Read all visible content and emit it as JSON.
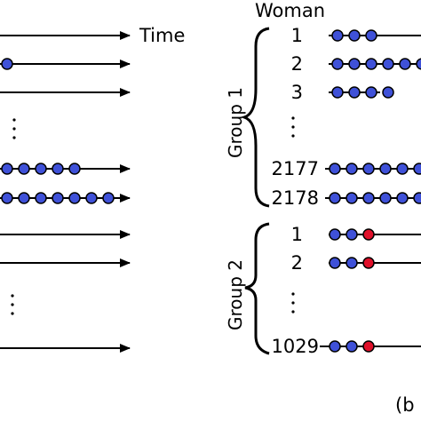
{
  "colors": {
    "blue": "#3f51d8",
    "red": "#e0102a",
    "line": "#000000"
  },
  "labels": {
    "time": "Time",
    "woman": "Woman",
    "group1": "Group 1",
    "group2": "Group 2",
    "panel": "(b"
  },
  "left_panel": {
    "rows": [
      {
        "id": "L1",
        "dots": []
      },
      {
        "id": "L2",
        "dots": [
          "blue"
        ]
      },
      {
        "id": "L3",
        "dots": []
      },
      {
        "id": "L4",
        "dots": [
          "blue",
          "blue",
          "blue",
          "blue",
          "blue"
        ]
      },
      {
        "id": "L5",
        "dots": [
          "blue",
          "blue",
          "blue",
          "blue",
          "blue",
          "blue",
          "blue"
        ]
      },
      {
        "id": "L6",
        "dots": []
      },
      {
        "id": "L7",
        "dots": []
      },
      {
        "id": "L8",
        "dots": []
      }
    ]
  },
  "group1": {
    "rows": [
      {
        "label": "1",
        "dots": [
          "blue",
          "blue",
          "blue"
        ]
      },
      {
        "label": "2",
        "dots": [
          "blue",
          "blue",
          "blue",
          "blue",
          "blue",
          "blue"
        ]
      },
      {
        "label": "3",
        "dots": [
          "blue",
          "blue",
          "blue",
          "blue"
        ]
      },
      {
        "label": "2177",
        "dots": [
          "blue",
          "blue",
          "blue",
          "blue",
          "blue",
          "blue"
        ]
      },
      {
        "label": "2178",
        "dots": [
          "blue",
          "blue",
          "blue",
          "blue",
          "blue",
          "blue"
        ]
      }
    ]
  },
  "group2": {
    "rows": [
      {
        "label": "1",
        "dots": [
          "blue",
          "blue",
          "red"
        ]
      },
      {
        "label": "2",
        "dots": [
          "blue",
          "blue",
          "red"
        ]
      },
      {
        "label": "1029",
        "dots": [
          "blue",
          "blue",
          "red"
        ]
      }
    ]
  }
}
